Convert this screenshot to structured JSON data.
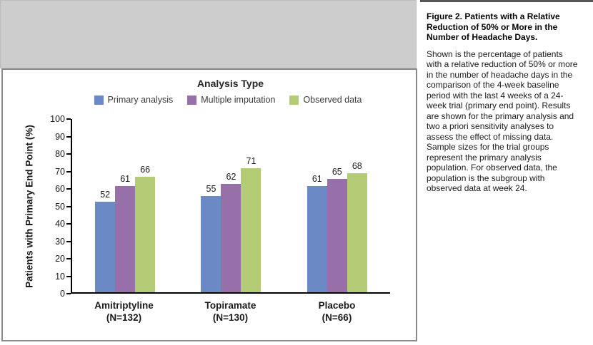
{
  "chart_data": {
    "type": "bar",
    "title": "Analysis Type",
    "ylabel": "Patients with Primary End Point (%)",
    "xlabel": "",
    "ylim": [
      0,
      100
    ],
    "ytick_step": 10,
    "grid": false,
    "legend_position": "top",
    "categories": [
      "Amitriptyline",
      "Topiramate",
      "Placebo"
    ],
    "category_sublabels": [
      "(N=132)",
      "(N=130)",
      "(N=66)"
    ],
    "series": [
      {
        "name": "Primary analysis",
        "color": "#6b89c4",
        "values": [
          52,
          55,
          61
        ]
      },
      {
        "name": "Multiple imputation",
        "color": "#9770aa",
        "values": [
          61,
          62,
          65
        ]
      },
      {
        "name": "Observed data",
        "color": "#b2cb74",
        "values": [
          66,
          71,
          68
        ]
      }
    ],
    "axis_color": "#000000"
  },
  "caption": {
    "title": "Figure 2. Patients with a Relative Reduction of 50% or More in the Number of Headache Days.",
    "body": "Shown is the percentage of patients with a relative reduction of 50% or more in the number of headache days in the comparison of the 4-week baseline period with the last 4 weeks of a 24-week trial (primary end point). Results are shown for the primary analysis and two a priori sensitivity analyses to assess the effect of missing data. Sample sizes for the trial groups represent the primary analysis population. For observed data, the population is the subgroup with observed data at week 24."
  },
  "colors": {
    "placeholder_gray": "#cdcdcd",
    "panel_border": "#8a8a8a",
    "caption_rule": "#55565a"
  }
}
